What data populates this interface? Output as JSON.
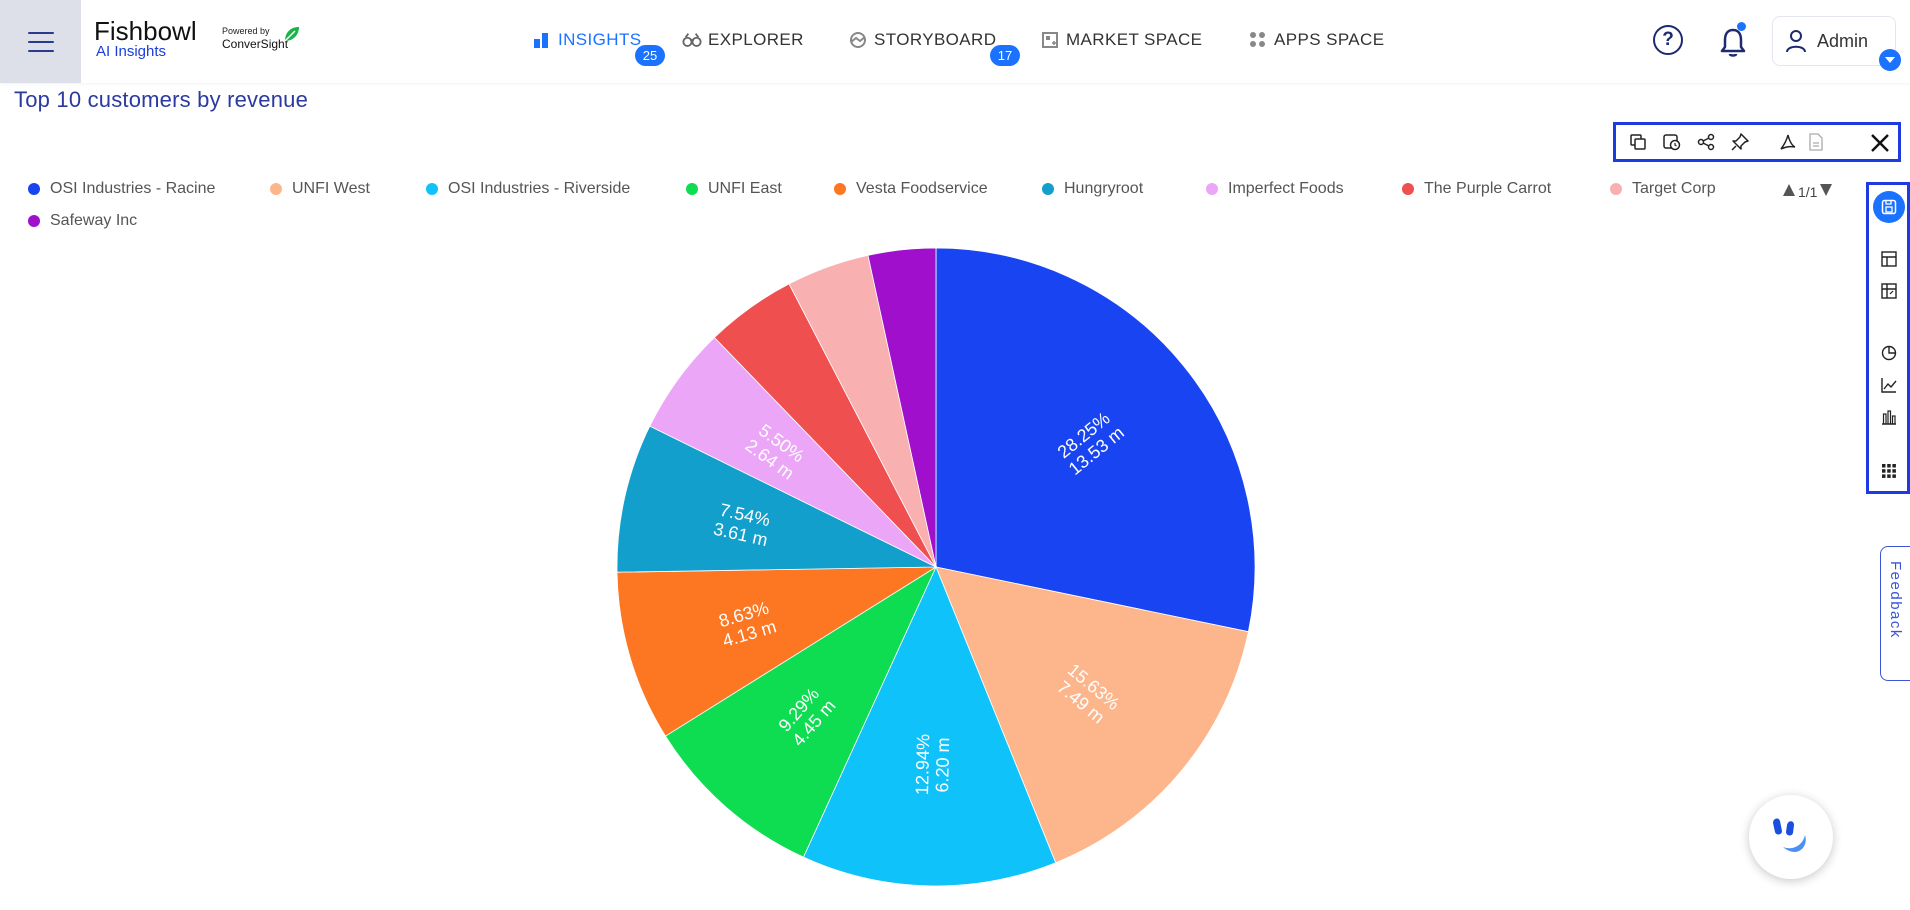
{
  "header": {
    "brand": "Fishbowl",
    "brand_sub": "AI Insights",
    "powered_by": "Powered by",
    "powered_name": "ConverSight",
    "nav": [
      {
        "label": "INSIGHTS",
        "icon": "insights-bar-icon",
        "badge": "25",
        "active": true
      },
      {
        "label": "EXPLORER",
        "icon": "binoculars-icon",
        "badge": null,
        "active": false
      },
      {
        "label": "STORYBOARD",
        "icon": "storyboard-icon",
        "badge": "17",
        "active": false
      },
      {
        "label": "MARKET SPACE",
        "icon": "market-space-icon",
        "badge": null,
        "active": false
      },
      {
        "label": "APPS SPACE",
        "icon": "apps-grid-icon",
        "badge": null,
        "active": false
      }
    ],
    "help_glyph": "?",
    "user": "Admin"
  },
  "chart_title": "Top 10 customers by revenue",
  "legend_pager": "1/1",
  "feedback_label": "Feedback",
  "colors": {
    "accent": "#1a72ff",
    "highlight_border": "#1d3be0",
    "title": "#2a3a9f"
  },
  "chart_data": {
    "type": "pie",
    "title": "Top 10 customers by revenue",
    "legend_placement": "top",
    "series": [
      {
        "name": "OSI Industries - Racine",
        "percent": 28.25,
        "value": 13.53,
        "label_pct": "28.25%",
        "label_val": "13.53 m",
        "color": "#1944f1"
      },
      {
        "name": "UNFI West",
        "percent": 15.63,
        "value": 7.49,
        "label_pct": "15.63%",
        "label_val": "7.49 m",
        "color": "#fdb68c"
      },
      {
        "name": "OSI Industries - Riverside",
        "percent": 12.94,
        "value": 6.2,
        "label_pct": "12.94%",
        "label_val": "6.20 m",
        "color": "#10c2fa"
      },
      {
        "name": "UNFI East",
        "percent": 9.29,
        "value": 4.45,
        "label_pct": "9.29%",
        "label_val": "4.45 m",
        "color": "#0edd52"
      },
      {
        "name": "Vesta Foodservice",
        "percent": 8.63,
        "value": 4.13,
        "label_pct": "8.63%",
        "label_val": "4.13 m",
        "color": "#fd7622"
      },
      {
        "name": "Hungryroot",
        "percent": 7.54,
        "value": 3.61,
        "label_pct": "7.54%",
        "label_val": "3.61 m",
        "color": "#129fcc"
      },
      {
        "name": "Imperfect Foods",
        "percent": 5.5,
        "value": 2.64,
        "label_pct": "5.50%",
        "label_val": "2.64 m",
        "color": "#eca6f8"
      },
      {
        "name": "The Purple Carrot",
        "percent": 4.6,
        "value": 2.2,
        "label_pct": "",
        "label_val": "",
        "color": "#f04f4f"
      },
      {
        "name": "Target Corp",
        "percent": 4.2,
        "value": 2.01,
        "label_pct": "",
        "label_val": "",
        "color": "#f9b0b0"
      },
      {
        "name": "Safeway Inc",
        "percent": 3.42,
        "value": 1.64,
        "label_pct": "",
        "label_val": "",
        "color": "#a00fcc"
      }
    ]
  }
}
